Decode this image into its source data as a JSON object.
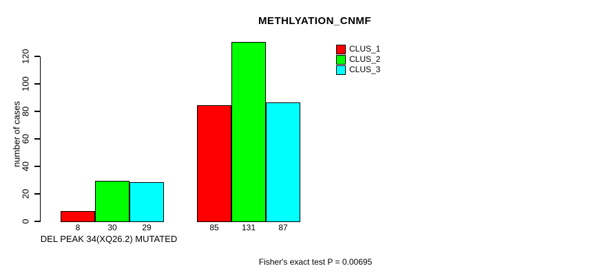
{
  "title": "METHLYATION_CNMF",
  "y_axis": {
    "label": "number of cases",
    "ticks": [
      0,
      20,
      40,
      60,
      80,
      100,
      120
    ]
  },
  "x_axis": {
    "group_labels": [
      "DEL PEAK 34(XQ26.2) MUTATED",
      ""
    ]
  },
  "legend": {
    "items": [
      {
        "label": "CLUS_1",
        "color": "#ff0000"
      },
      {
        "label": "CLUS_2",
        "color": "#00ff00"
      },
      {
        "label": "CLUS_3",
        "color": "#00ffff"
      }
    ]
  },
  "footer": "Fisher's exact test P = 0.00695",
  "chart_data": {
    "type": "bar",
    "title": "METHLYATION_CNMF",
    "xlabel": "",
    "ylabel": "number of cases",
    "categories": [
      "DEL PEAK 34(XQ26.2) MUTATED",
      ""
    ],
    "series": [
      {
        "name": "CLUS_1",
        "color": "#ff0000",
        "values": [
          8,
          85
        ]
      },
      {
        "name": "CLUS_2",
        "color": "#00ff00",
        "values": [
          30,
          131
        ]
      },
      {
        "name": "CLUS_3",
        "color": "#00ffff",
        "values": [
          29,
          87
        ]
      }
    ],
    "value_labels": [
      [
        8,
        30,
        29
      ],
      [
        85,
        131,
        87
      ]
    ],
    "ylim": [
      0,
      130
    ],
    "yticks": [
      0,
      20,
      40,
      60,
      80,
      100,
      120
    ],
    "grid": false,
    "bar_border_color": "#000000",
    "legend_position": "top-right",
    "annotation": "Fisher's exact test P = 0.00695"
  }
}
